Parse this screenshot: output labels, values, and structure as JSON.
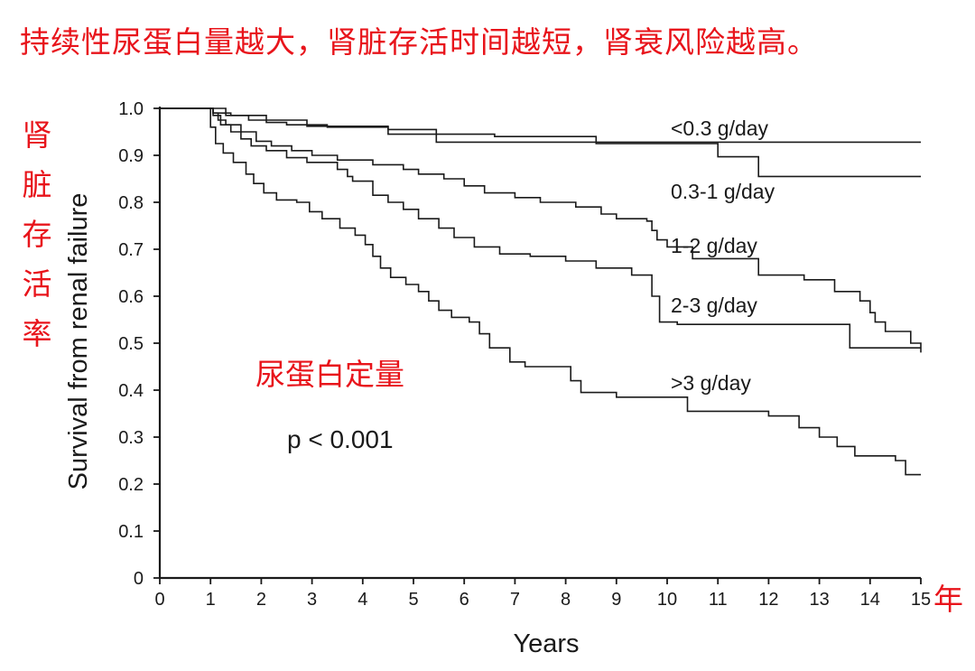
{
  "title": "持续性尿蛋白量越大，肾脏存活时间越短，肾衰风险越高。",
  "annotation_red": "尿蛋白定量",
  "y_label_cn": [
    "肾",
    "脏",
    "存",
    "活",
    "率"
  ],
  "x_unit_cn": "年",
  "colors": {
    "accent": "#e8141b",
    "ink": "#1a1a1a"
  },
  "chart_data": {
    "type": "line",
    "xlabel": "Years",
    "ylabel": "Survival from renal failure",
    "xlim": [
      0,
      15
    ],
    "ylim": [
      0,
      1.0
    ],
    "x_ticks": [
      "0",
      "1",
      "2",
      "3",
      "4",
      "5",
      "6",
      "7",
      "8",
      "9",
      "10",
      "11",
      "12",
      "13",
      "14",
      "15"
    ],
    "y_ticks": [
      "0",
      "0.1",
      "0.2",
      "0.3",
      "0.4",
      "0.5",
      "0.6",
      "0.7",
      "0.8",
      "0.9",
      "1.0"
    ],
    "p_value_text": "p < 0.001",
    "grid": false,
    "series": [
      {
        "name": "<0.3 g/day",
        "steps": [
          [
            0,
            1.0
          ],
          [
            1.05,
            0.99
          ],
          [
            1.4,
            0.985
          ],
          [
            1.75,
            0.975
          ],
          [
            2.1,
            0.97
          ],
          [
            2.5,
            0.965
          ],
          [
            3.3,
            0.96
          ],
          [
            4.5,
            0.955
          ],
          [
            5.45,
            0.928
          ],
          [
            11,
            0.928
          ],
          [
            15,
            0.928
          ]
        ]
      },
      {
        "name": "0.3-1 g/day",
        "steps": [
          [
            0,
            1.0
          ],
          [
            1.3,
            0.985
          ],
          [
            2.1,
            0.975
          ],
          [
            2.9,
            0.962
          ],
          [
            4.5,
            0.945
          ],
          [
            6.6,
            0.94
          ],
          [
            8.6,
            0.925
          ],
          [
            11,
            0.897
          ],
          [
            11.8,
            0.855
          ],
          [
            15,
            0.855
          ]
        ]
      },
      {
        "name": "1-2 g/day",
        "steps": [
          [
            0,
            1.0
          ],
          [
            1.05,
            0.99
          ],
          [
            1.15,
            0.975
          ],
          [
            1.3,
            0.965
          ],
          [
            1.6,
            0.95
          ],
          [
            1.9,
            0.93
          ],
          [
            2.2,
            0.92
          ],
          [
            2.6,
            0.91
          ],
          [
            3,
            0.9
          ],
          [
            3.5,
            0.89
          ],
          [
            4.2,
            0.88
          ],
          [
            4.8,
            0.87
          ],
          [
            5.1,
            0.86
          ],
          [
            5.6,
            0.85
          ],
          [
            6.0,
            0.835
          ],
          [
            6.4,
            0.82
          ],
          [
            7.0,
            0.81
          ],
          [
            7.5,
            0.8
          ],
          [
            8.2,
            0.79
          ],
          [
            8.7,
            0.775
          ],
          [
            9.0,
            0.765
          ],
          [
            9.6,
            0.76
          ],
          [
            9.7,
            0.74
          ],
          [
            9.8,
            0.72
          ],
          [
            10.0,
            0.705
          ],
          [
            10.5,
            0.68
          ],
          [
            11.8,
            0.645
          ],
          [
            12.7,
            0.635
          ],
          [
            13.3,
            0.61
          ],
          [
            13.8,
            0.59
          ],
          [
            14.0,
            0.565
          ],
          [
            14.1,
            0.545
          ],
          [
            14.3,
            0.525
          ],
          [
            14.8,
            0.5
          ],
          [
            15,
            0.48
          ]
        ]
      },
      {
        "name": "2-3 g/day",
        "steps": [
          [
            0,
            1.0
          ],
          [
            1.05,
            0.985
          ],
          [
            1.2,
            0.965
          ],
          [
            1.4,
            0.95
          ],
          [
            1.6,
            0.935
          ],
          [
            1.8,
            0.92
          ],
          [
            2.1,
            0.91
          ],
          [
            2.5,
            0.895
          ],
          [
            2.9,
            0.885
          ],
          [
            3.5,
            0.87
          ],
          [
            3.7,
            0.855
          ],
          [
            3.8,
            0.845
          ],
          [
            4.2,
            0.815
          ],
          [
            4.5,
            0.8
          ],
          [
            4.8,
            0.785
          ],
          [
            5.1,
            0.765
          ],
          [
            5.5,
            0.745
          ],
          [
            5.8,
            0.725
          ],
          [
            6.2,
            0.705
          ],
          [
            6.7,
            0.69
          ],
          [
            7.3,
            0.685
          ],
          [
            8.0,
            0.675
          ],
          [
            8.6,
            0.66
          ],
          [
            9.3,
            0.645
          ],
          [
            9.7,
            0.6
          ],
          [
            9.85,
            0.545
          ],
          [
            10.2,
            0.54
          ],
          [
            13.5,
            0.54
          ],
          [
            13.6,
            0.49
          ],
          [
            15,
            0.49
          ]
        ]
      },
      {
        "name": ">3 g/day",
        "steps": [
          [
            0,
            1.0
          ],
          [
            1.0,
            0.96
          ],
          [
            1.1,
            0.925
          ],
          [
            1.25,
            0.905
          ],
          [
            1.45,
            0.885
          ],
          [
            1.7,
            0.86
          ],
          [
            1.85,
            0.84
          ],
          [
            2.05,
            0.82
          ],
          [
            2.3,
            0.805
          ],
          [
            2.7,
            0.8
          ],
          [
            2.95,
            0.78
          ],
          [
            3.2,
            0.765
          ],
          [
            3.55,
            0.745
          ],
          [
            3.85,
            0.73
          ],
          [
            4.05,
            0.71
          ],
          [
            4.2,
            0.685
          ],
          [
            4.35,
            0.66
          ],
          [
            4.55,
            0.64
          ],
          [
            4.85,
            0.625
          ],
          [
            5.1,
            0.61
          ],
          [
            5.3,
            0.59
          ],
          [
            5.5,
            0.57
          ],
          [
            5.75,
            0.555
          ],
          [
            6.1,
            0.545
          ],
          [
            6.3,
            0.52
          ],
          [
            6.5,
            0.49
          ],
          [
            6.9,
            0.46
          ],
          [
            7.2,
            0.45
          ],
          [
            8.1,
            0.42
          ],
          [
            8.3,
            0.395
          ],
          [
            9.0,
            0.385
          ],
          [
            10.4,
            0.355
          ],
          [
            12.0,
            0.345
          ],
          [
            12.6,
            0.32
          ],
          [
            13.0,
            0.3
          ],
          [
            13.35,
            0.28
          ],
          [
            13.7,
            0.26
          ],
          [
            14.5,
            0.25
          ],
          [
            14.7,
            0.22
          ],
          [
            15,
            0.22
          ]
        ]
      }
    ]
  }
}
